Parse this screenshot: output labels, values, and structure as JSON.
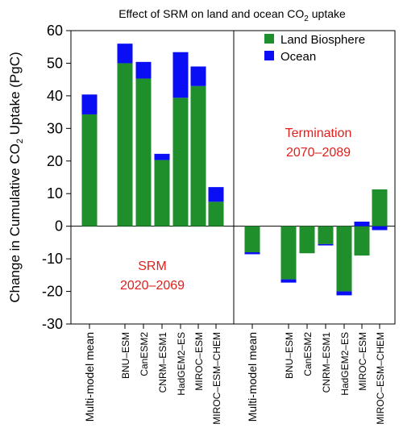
{
  "chart_data": {
    "type": "bar",
    "stacked": true,
    "title": "Effect of SRM on land and ocean CO",
    "title_subscript": "2",
    "title_suffix": " uptake",
    "ylabel": "Change in Cumulative CO",
    "ylabel_subscript": "2",
    "ylabel_suffix": " Uptake (PgC)",
    "ylim": [
      -30,
      60
    ],
    "yticks": [
      -30,
      -20,
      -10,
      0,
      10,
      20,
      30,
      40,
      50,
      60
    ],
    "legend": {
      "position": "top-right",
      "items": [
        {
          "label": "Land Biosphere",
          "color": "#1e8f2a"
        },
        {
          "label": "Ocean",
          "color": "#0a0ef5"
        }
      ]
    },
    "panels": [
      {
        "annotation": [
          "SRM",
          "2020–2069"
        ],
        "annotation_color": "#e0201c",
        "categories": [
          "Multi-model mean",
          "BNU–ESM",
          "CanESM2",
          "CNRM–ESM1",
          "HadGEM2–ES",
          "MIROC–ESM",
          "MIROC–ESM–CHEM"
        ],
        "series": [
          {
            "name": "Land Biosphere",
            "values": [
              34.3,
              50.0,
              45.3,
              20.3,
              39.4,
              43.0,
              7.5
            ]
          },
          {
            "name": "Ocean",
            "values": [
              6.1,
              6.0,
              5.1,
              1.9,
              14.0,
              6.0,
              4.5
            ]
          }
        ]
      },
      {
        "annotation": [
          "Termination",
          "2070–2089"
        ],
        "annotation_color": "#e0201c",
        "categories": [
          "Multi-model mean",
          "BNU–ESM",
          "CanESM2",
          "CNRM–ESM1",
          "HadGEM2–ES",
          "MIROC–ESM",
          "MIROC–ESM–CHEM"
        ],
        "series": [
          {
            "name": "Land Biosphere",
            "values": [
              -8.0,
              -16.3,
              -8.3,
              -5.5,
              -20.0,
              -9.0,
              11.3
            ]
          },
          {
            "name": "Ocean",
            "values": [
              -0.6,
              -1.0,
              0.0,
              -0.4,
              -1.2,
              1.4,
              -1.2
            ]
          }
        ]
      }
    ]
  }
}
